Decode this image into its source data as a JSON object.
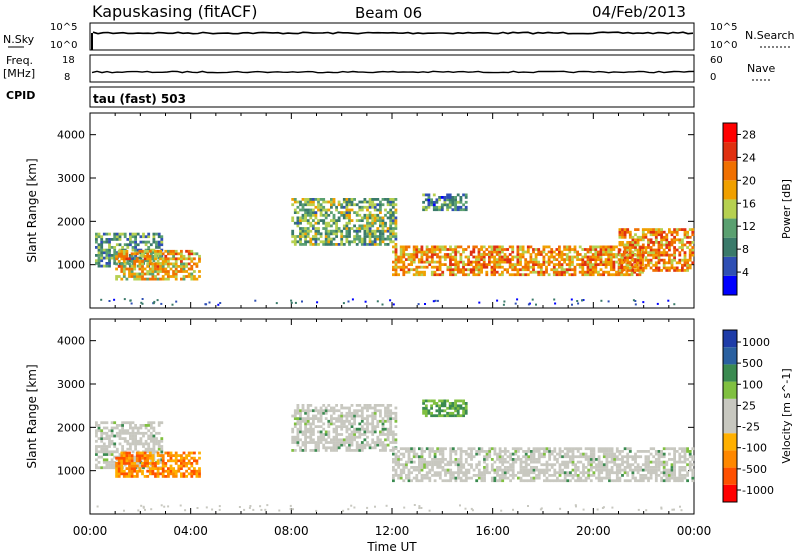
{
  "header": {
    "station": "Kapuskasing (fitACF)",
    "beam": "Beam 06",
    "date": "04/Feb/2013"
  },
  "top_panels": {
    "nsky_label": "N.Sky",
    "nsky_ticks": [
      "10^5",
      "10^0"
    ],
    "nsearch_label": "N.Search",
    "nsearch_ticks": [
      "10^5",
      "10^0"
    ],
    "freq_label": "Freq.",
    "freq_unit": "[MHz]",
    "freq_ticks": [
      "18",
      "8"
    ],
    "nave_label": "Nave",
    "nave_ticks": [
      "60",
      "0"
    ],
    "cpid_label": "CPID",
    "cpid_value": "tau (fast) 503"
  },
  "colors": {
    "power_scale": [
      "#0000ff",
      "#2f4fb4",
      "#3a7a6a",
      "#5aa070",
      "#b6d050",
      "#f0a000",
      "#f07000",
      "#e03010",
      "#ff0000"
    ],
    "velocity_scale": [
      "#ff0000",
      "#ff5000",
      "#ff8800",
      "#ffb000",
      "#c8c8c0",
      "#c8c8c0",
      "#80c040",
      "#3a8a50",
      "#2a60a0",
      "#1e3ca8"
    ],
    "trace": "#000000"
  },
  "chart_data": [
    {
      "type": "heatmap",
      "title": "Power",
      "ylabel": "Slant Range [km]",
      "ylim": [
        0,
        4500
      ],
      "yticks": [
        "1000",
        "2000",
        "3000",
        "4000"
      ],
      "xlim": [
        0,
        24
      ],
      "colorbar": {
        "label": "Power [dB]",
        "ticks": [
          "4",
          "8",
          "12",
          "16",
          "20",
          "24",
          "28"
        ],
        "range": [
          0,
          30
        ]
      },
      "regions": [
        {
          "t": [
            0.2,
            2.9
          ],
          "r": [
            1000,
            1800
          ],
          "v": 10
        },
        {
          "t": [
            1.0,
            4.4
          ],
          "r": [
            700,
            1400
          ],
          "v": 18
        },
        {
          "t": [
            8.0,
            12.2
          ],
          "r": [
            1500,
            2600
          ],
          "v": 12
        },
        {
          "t": [
            12.0,
            22.0
          ],
          "r": [
            800,
            1500
          ],
          "v": 20
        },
        {
          "t": [
            13.2,
            15.0
          ],
          "r": [
            2300,
            2700
          ],
          "v": 9
        },
        {
          "t": [
            21.0,
            24.0
          ],
          "r": [
            900,
            1900
          ],
          "v": 20
        }
      ]
    },
    {
      "type": "heatmap",
      "title": "Velocity",
      "ylabel": "Slant Range [km]",
      "ylim": [
        0,
        4500
      ],
      "yticks": [
        "1000",
        "2000",
        "3000",
        "4000"
      ],
      "xlim": [
        0,
        24
      ],
      "colorbar": {
        "label": "Velocity [m s^-1]",
        "ticks": [
          "1000",
          "500",
          "100",
          "25",
          "-25",
          "-100",
          "-500",
          "-1000"
        ],
        "range": [
          -1000,
          1000
        ]
      },
      "regions": [
        {
          "t": [
            0.2,
            2.9
          ],
          "r": [
            1100,
            2200
          ],
          "v": 0
        },
        {
          "t": [
            1.0,
            4.4
          ],
          "r": [
            900,
            1500
          ],
          "v": -300
        },
        {
          "t": [
            8.0,
            12.2
          ],
          "r": [
            1500,
            2600
          ],
          "v": 0
        },
        {
          "t": [
            12.0,
            24.0
          ],
          "r": [
            800,
            1600
          ],
          "v": 0
        },
        {
          "t": [
            13.2,
            15.0
          ],
          "r": [
            2300,
            2700
          ],
          "v": 100
        }
      ]
    }
  ],
  "xaxis": {
    "label": "Time UT",
    "ticks": [
      "00:00",
      "04:00",
      "08:00",
      "12:00",
      "16:00",
      "20:00",
      "00:00"
    ]
  }
}
